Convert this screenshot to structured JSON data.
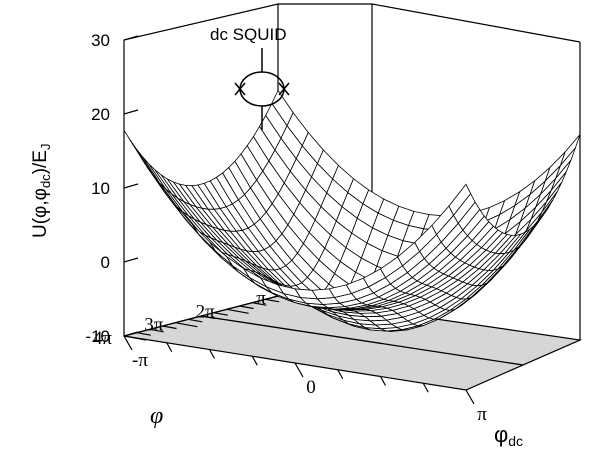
{
  "chart_data": {
    "type": "surface3d",
    "title": "",
    "inset_label": "dc SQUID",
    "zlabel": {
      "main": "U(φ,φ",
      "sub1": "dc",
      "mid": ")/E",
      "sub2": "J"
    },
    "zlim": [
      -10,
      30
    ],
    "z_ticks": [
      {
        "label": "30",
        "value": 30
      },
      {
        "label": "20",
        "value": 20
      },
      {
        "label": "10",
        "value": 10
      },
      {
        "label": "0",
        "value": 0
      },
      {
        "label": "-10",
        "value": -10
      }
    ],
    "phi_axis": {
      "symbol": "φ",
      "range": [
        3.1416,
        12.566
      ],
      "ticks": [
        {
          "label": "π",
          "value": 3.1416
        },
        {
          "label": "2π",
          "value": 6.2832
        },
        {
          "label": "3π",
          "value": 9.4248
        },
        {
          "label": "4π",
          "value": 12.566
        }
      ]
    },
    "phidc_axis": {
      "symbol": "φ",
      "sub": "dc",
      "range": [
        -3.1416,
        3.1416
      ],
      "ticks": [
        {
          "label": "-π",
          "value": -3.1416
        },
        {
          "label": "0",
          "value": 0
        },
        {
          "label": "π",
          "value": 3.1416
        }
      ]
    },
    "surface": {
      "model": "U = -2·|cos(φ_dc/2)|·cos(φ) + 0.45·(φ - 7.85)^2 + 1.6·φ_dc^2 - 8",
      "grid": [
        26,
        21
      ]
    }
  }
}
